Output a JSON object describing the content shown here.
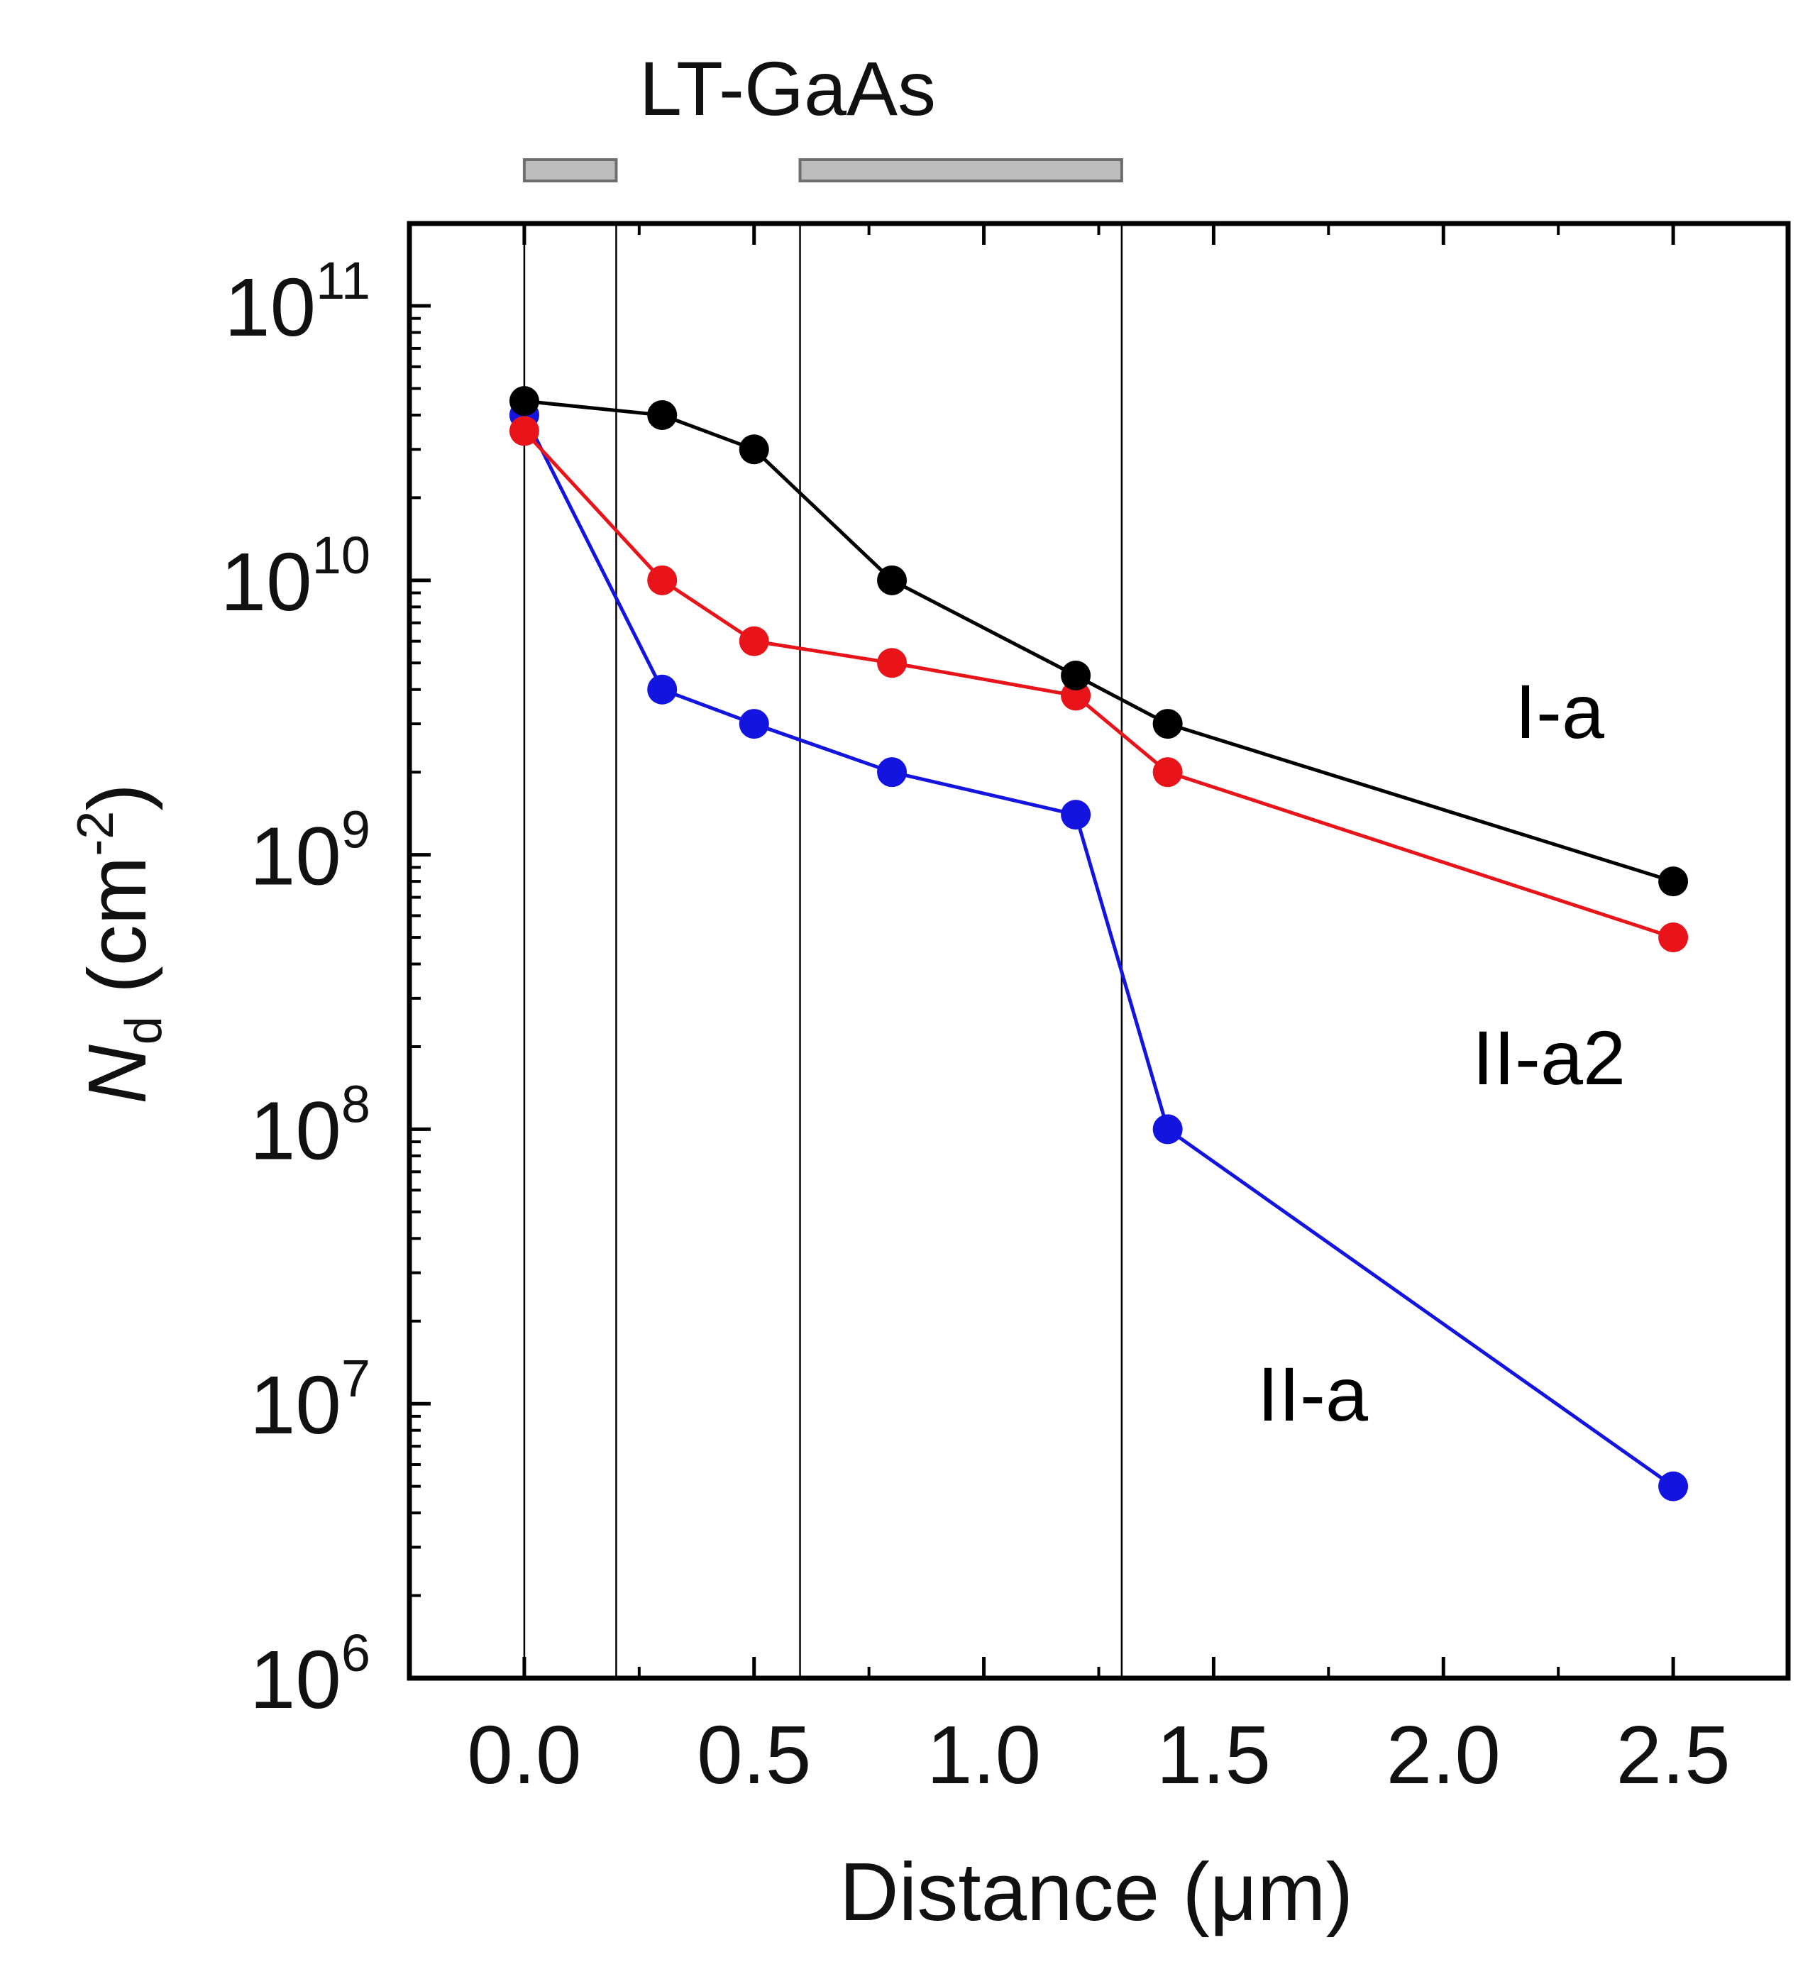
{
  "chart_data": {
    "type": "line",
    "title": "",
    "xlabel": "Distance (μm)",
    "ylabel": "N",
    "ylabel_sub": "d",
    "ylabel_unit_prefix": " (cm",
    "ylabel_unit_exp": "-2",
    "ylabel_unit_suffix": ")",
    "xlim": [
      -0.25,
      2.75
    ],
    "ylim_log10": [
      6,
      11.3
    ],
    "y_scale": "log",
    "x_ticks": [
      0.0,
      0.5,
      1.0,
      1.5,
      2.0,
      2.5
    ],
    "x_tick_labels": [
      "0.0",
      "0.5",
      "1.0",
      "1.5",
      "2.0",
      "2.5"
    ],
    "y_tick_exponents": [
      6,
      7,
      8,
      9,
      10,
      11
    ],
    "y_tick_base": "10",
    "y_tick_exp_labels": [
      "6",
      "7",
      "8",
      "9",
      "10",
      "11"
    ],
    "grid": false,
    "annotation": {
      "text": "LT-GaAs",
      "regions": [
        [
          0.0,
          0.2
        ],
        [
          0.6,
          1.3
        ]
      ]
    },
    "series": [
      {
        "name": "I-a",
        "color": "#000000",
        "x": [
          0.0,
          0.3,
          0.5,
          0.8,
          1.2,
          1.4,
          2.5
        ],
        "y": [
          45000000000.0,
          40000000000.0,
          30000000000.0,
          10000000000.0,
          4500000000.0,
          3000000000.0,
          800000000.0
        ]
      },
      {
        "name": "II-a2",
        "color": "#e8141a",
        "x": [
          0.0,
          0.3,
          0.5,
          0.8,
          1.2,
          1.4,
          2.5
        ],
        "y": [
          35000000000.0,
          10000000000.0,
          6000000000.0,
          5000000000.0,
          3800000000.0,
          2000000000.0,
          500000000.0
        ]
      },
      {
        "name": "II-a",
        "color": "#1414e0",
        "x": [
          0.0,
          0.3,
          0.5,
          0.8,
          1.2,
          1.4,
          2.5
        ],
        "y": [
          40000000000.0,
          4000000000.0,
          3000000000.0,
          2000000000.0,
          1400000000.0,
          100000000.0,
          5000000.0
        ]
      }
    ]
  }
}
